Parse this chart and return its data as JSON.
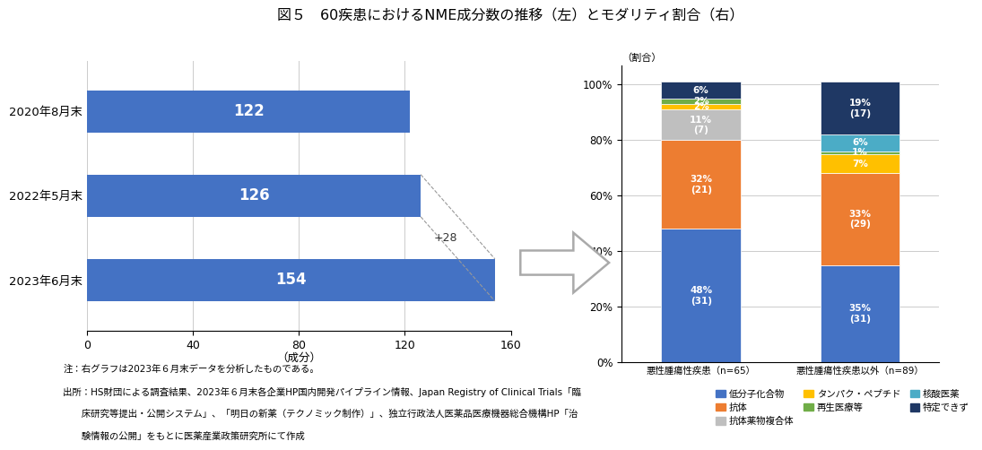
{
  "title": "図５　60疾患におけるNME成分数の推移（左）とモダリティ割合（右）",
  "bar_labels": [
    "2020年8月末",
    "2022年5月末",
    "2023年6月末"
  ],
  "bar_values": [
    122,
    126,
    154
  ],
  "bar_color": "#4472C4",
  "bar_text_color": "white",
  "xlabel": "（成分）",
  "xlim": [
    0,
    160
  ],
  "xticks": [
    0,
    40,
    80,
    120,
    160
  ],
  "annotation_text": "+28",
  "stacked_ylabel": "（割合）",
  "stacked_yticks": [
    0,
    20,
    40,
    60,
    80,
    100
  ],
  "stacked_yticklabels": [
    "0%",
    "20%",
    "40%",
    "60%",
    "80%",
    "100%"
  ],
  "modality_names": [
    "低分子化合物",
    "抗体",
    "抗体薬物複合体",
    "タンパク・ペプチド",
    "再生医療等",
    "核酸医薬",
    "特定できず"
  ],
  "modality_colors": [
    "#4472C4",
    "#ED7D31",
    "#BFBFBF",
    "#FFC000",
    "#70AD47",
    "#4BACC6",
    "#1F3864"
  ],
  "stacked_data": {
    "悪性腫瘍性疾患": [
      48,
      32,
      11,
      2,
      2,
      0,
      6
    ],
    "悪性腫瘍性疾患以外": [
      35,
      33,
      0,
      7,
      1,
      6,
      19
    ]
  },
  "stacked_labels": {
    "悪性腫瘍性疾患": [
      "48%\n(31)",
      "32%\n(21)",
      "11%\n(7)",
      "2%",
      "2%",
      "",
      "6%"
    ],
    "悪性腫瘍性疾患以外": [
      "35%\n(31)",
      "33%\n(29)",
      "",
      "7%",
      "1%",
      "6%",
      "19%\n(17)"
    ]
  },
  "cat1_label": "悪性腫瘍性疾患（n=65）",
  "cat2_label": "悪性腫瘍性疾患以外（n=89）",
  "note_line1": "注：右グラフは2023年６月末データを分析したものである。",
  "note_line2": "出所：HS財団による調査結果、2023年６月末各企業HP国内開発パイプライン情報、Japan Registry of Clinical Trials「臨",
  "note_line3": "　　床研究等提出・公開システム」、「明日の新薬（テクノミック制作）」、独立行政法人医薬品医療機器総合機構HP「治",
  "note_line4": "　　験情報の公開」をもとに医薬産業政策研究所にて作成",
  "bg_color": "#FFFFFF"
}
